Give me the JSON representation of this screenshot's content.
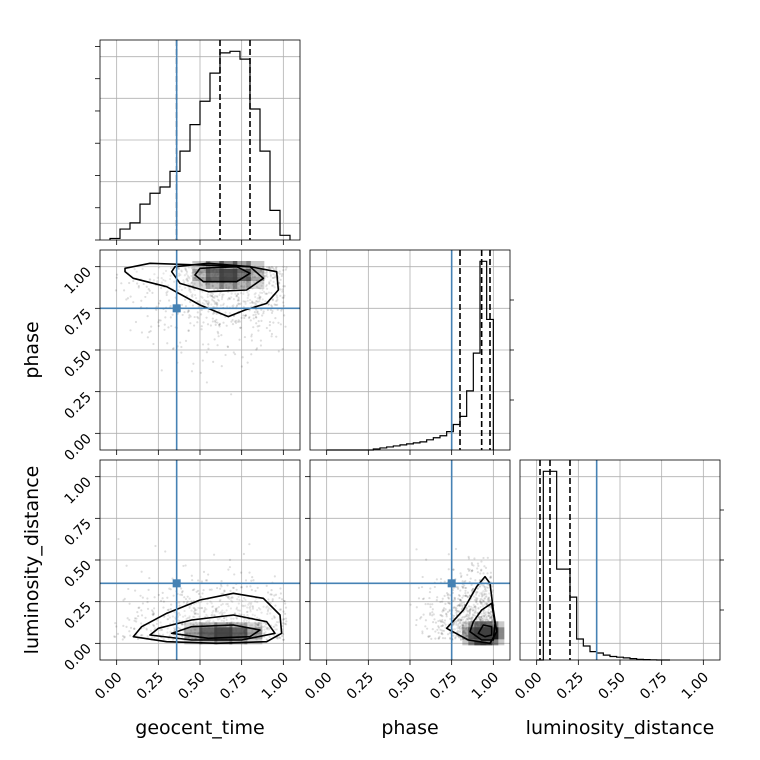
{
  "chart_data": {
    "type": "corner",
    "parameters": [
      "geocent_time",
      "phase",
      "luminosity_distance"
    ],
    "range": [
      0,
      1
    ],
    "ticks": [
      0.0,
      0.25,
      0.5,
      0.75,
      1.0
    ],
    "tick_labels": [
      "0.00",
      "0.25",
      "0.50",
      "0.75",
      "1.00"
    ],
    "axis_labels": {
      "geocent_time": "geocent_time",
      "phase": "phase",
      "luminosity_distance": "luminosity_distance"
    },
    "truths": {
      "geocent_time": 0.36,
      "phase": 0.75,
      "luminosity_distance": 0.36
    },
    "truth_color": "#4682b4",
    "grid": true,
    "marginals": {
      "geocent_time": {
        "bin_edges": [
          -0.04,
          0.02,
          0.08,
          0.14,
          0.2,
          0.26,
          0.32,
          0.38,
          0.44,
          0.5,
          0.56,
          0.62,
          0.68,
          0.74,
          0.8,
          0.86,
          0.92,
          0.98,
          1.04
        ],
        "counts": [
          1,
          7,
          11,
          23,
          30,
          34,
          44,
          57,
          74,
          89,
          107,
          120,
          121,
          116,
          84,
          57,
          19,
          3
        ],
        "quantiles": [
          0.36,
          0.62,
          0.8
        ]
      },
      "phase": {
        "bin_edges": [
          0.0,
          0.04,
          0.08,
          0.12,
          0.16,
          0.2,
          0.24,
          0.28,
          0.32,
          0.36,
          0.4,
          0.44,
          0.48,
          0.52,
          0.56,
          0.6,
          0.64,
          0.68,
          0.72,
          0.76,
          0.8,
          0.84,
          0.88,
          0.92,
          0.96,
          1.0
        ],
        "counts": [
          0,
          0,
          0,
          0,
          0,
          0,
          0,
          1,
          2,
          3,
          4,
          5,
          6,
          7,
          8,
          10,
          12,
          14,
          18,
          25,
          33,
          58,
          95,
          185,
          128
        ],
        "quantiles": [
          0.8,
          0.93,
          0.98
        ]
      },
      "luminosity_distance": {
        "bin_edges": [
          0.0,
          0.04,
          0.08,
          0.12,
          0.16,
          0.2,
          0.24,
          0.28,
          0.32,
          0.36,
          0.4,
          0.44,
          0.48,
          0.52,
          0.56,
          0.6,
          0.64,
          0.68,
          0.72,
          0.76,
          0.8
        ],
        "counts": [
          0,
          27,
          27,
          13,
          13,
          9,
          3,
          2,
          1.2,
          1,
          0.7,
          0.5,
          0.4,
          0.3,
          0.2,
          0.1,
          0.05,
          0.03,
          0,
          0
        ],
        "quantiles": [
          0.02,
          0.08,
          0.2
        ]
      }
    },
    "joint": {
      "phase_vs_geocent_time": {
        "density_center": [
          0.67,
          0.95
        ],
        "density_spread": [
          0.18,
          0.08
        ],
        "contours": [
          [
            [
              0.05,
              0.99
            ],
            [
              0.2,
              1.02
            ],
            [
              0.5,
              1.01
            ],
            [
              0.8,
              1.0
            ],
            [
              0.96,
              0.97
            ],
            [
              0.97,
              0.86
            ],
            [
              0.9,
              0.78
            ],
            [
              0.77,
              0.74
            ],
            [
              0.67,
              0.7
            ],
            [
              0.5,
              0.77
            ],
            [
              0.3,
              0.88
            ],
            [
              0.1,
              0.93
            ],
            [
              0.05,
              0.97
            ]
          ],
          [
            [
              0.35,
              1.0
            ],
            [
              0.55,
              1.02
            ],
            [
              0.8,
              1.0
            ],
            [
              0.88,
              0.93
            ],
            [
              0.78,
              0.86
            ],
            [
              0.55,
              0.85
            ],
            [
              0.38,
              0.9
            ],
            [
              0.33,
              0.97
            ]
          ],
          [
            [
              0.5,
              0.99
            ],
            [
              0.72,
              1.0
            ],
            [
              0.8,
              0.96
            ],
            [
              0.72,
              0.91
            ],
            [
              0.52,
              0.91
            ],
            [
              0.47,
              0.95
            ]
          ]
        ]
      },
      "luminosity_distance_vs_geocent_time": {
        "density_center": [
          0.64,
          0.06
        ],
        "density_spread": [
          0.2,
          0.05
        ],
        "contours": [
          [
            [
              0.1,
              0.04
            ],
            [
              0.3,
              0.01
            ],
            [
              0.6,
              0.0
            ],
            [
              0.9,
              0.01
            ],
            [
              0.99,
              0.06
            ],
            [
              0.98,
              0.17
            ],
            [
              0.88,
              0.27
            ],
            [
              0.7,
              0.3
            ],
            [
              0.5,
              0.26
            ],
            [
              0.3,
              0.18
            ],
            [
              0.15,
              0.1
            ]
          ],
          [
            [
              0.2,
              0.05
            ],
            [
              0.45,
              0.02
            ],
            [
              0.75,
              0.02
            ],
            [
              0.95,
              0.06
            ],
            [
              0.9,
              0.13
            ],
            [
              0.7,
              0.17
            ],
            [
              0.45,
              0.14
            ],
            [
              0.25,
              0.09
            ]
          ],
          [
            [
              0.33,
              0.06
            ],
            [
              0.55,
              0.03
            ],
            [
              0.8,
              0.04
            ],
            [
              0.86,
              0.08
            ],
            [
              0.7,
              0.11
            ],
            [
              0.45,
              0.1
            ]
          ]
        ]
      },
      "luminosity_distance_vs_phase": {
        "density_center": [
          0.94,
          0.06
        ],
        "density_spread": [
          0.08,
          0.06
        ],
        "contours": [
          [
            [
              0.72,
              0.09
            ],
            [
              0.85,
              0.02
            ],
            [
              0.98,
              0.0
            ],
            [
              1.02,
              0.07
            ],
            [
              1.0,
              0.2
            ],
            [
              0.98,
              0.36
            ],
            [
              0.95,
              0.4
            ],
            [
              0.9,
              0.34
            ],
            [
              0.82,
              0.2
            ]
          ],
          [
            [
              0.86,
              0.07
            ],
            [
              0.93,
              0.02
            ],
            [
              1.0,
              0.02
            ],
            [
              1.01,
              0.12
            ],
            [
              0.99,
              0.24
            ],
            [
              0.93,
              0.2
            ],
            [
              0.88,
              0.13
            ]
          ],
          [
            [
              0.91,
              0.06
            ],
            [
              0.95,
              0.04
            ],
            [
              0.99,
              0.05
            ],
            [
              0.99,
              0.1
            ],
            [
              0.94,
              0.11
            ]
          ]
        ]
      }
    }
  }
}
